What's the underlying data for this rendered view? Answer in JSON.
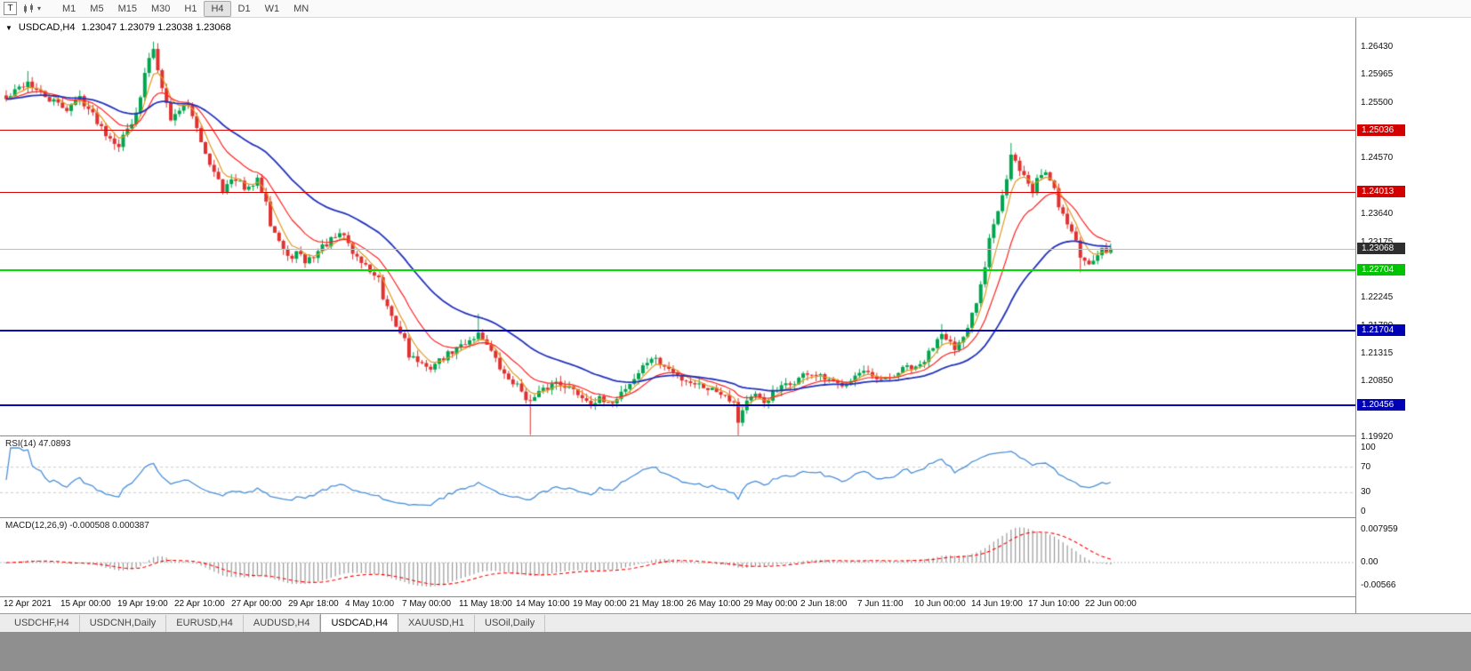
{
  "icons": {
    "title_dropdown": "▼",
    "toolbar_caret": "▾"
  },
  "toolbar": {
    "t_button": "T",
    "timeframes": [
      "M1",
      "M5",
      "M15",
      "M30",
      "H1",
      "H4",
      "D1",
      "W1",
      "MN"
    ],
    "active_timeframe": "H4"
  },
  "chart": {
    "title_symbol": "USDCAD,H4",
    "ohlc": "1.23047 1.23079 1.23038 1.23068",
    "axis_labels": [
      {
        "text": "1.26430",
        "price": 1.2643
      },
      {
        "text": "1.25965",
        "price": 1.25965
      },
      {
        "text": "1.25500",
        "price": 1.255
      },
      {
        "text": "1.24570",
        "price": 1.2457
      },
      {
        "text": "1.23640",
        "price": 1.2364
      },
      {
        "text": "1.23175",
        "price": 1.23175
      },
      {
        "text": "1.22245",
        "price": 1.22245
      },
      {
        "text": "1.21780",
        "price": 1.2178
      },
      {
        "text": "1.21315",
        "price": 1.21315
      },
      {
        "text": "1.20850",
        "price": 1.2085
      },
      {
        "text": "1.19920",
        "price": 1.1992
      }
    ],
    "badges": [
      {
        "text": "1.25036",
        "price": 1.25036,
        "color": "#d40000"
      },
      {
        "text": "1.24013",
        "price": 1.24013,
        "color": "#d40000"
      },
      {
        "text": "1.23068",
        "price": 1.23068,
        "color": "#2e2e2e"
      },
      {
        "text": "1.22704",
        "price": 1.22704,
        "color": "#00c400"
      },
      {
        "text": "1.21704",
        "price": 1.21704,
        "color": "#0000b4"
      },
      {
        "text": "1.20456",
        "price": 1.20456,
        "color": "#0000b4"
      }
    ],
    "hlines": [
      {
        "price": 1.25036,
        "color": "#dd0000",
        "width": 1
      },
      {
        "price": 1.24013,
        "color": "#dd0000",
        "width": 1
      },
      {
        "price": 1.22704,
        "color": "#00dd00",
        "width": 2
      },
      {
        "price": 1.21704,
        "color": "#0000bb",
        "width": 2
      },
      {
        "price": 1.20456,
        "color": "#0000bb",
        "width": 2
      }
    ],
    "price_line": {
      "price": 1.23068,
      "color": "#bdbdbd"
    }
  },
  "rsi": {
    "label": "RSI(14) 47.0893",
    "line_color": "#4a90d9",
    "axis_labels": [
      {
        "text": "100",
        "value": 100
      },
      {
        "text": "70",
        "value": 70
      },
      {
        "text": "30",
        "value": 30
      },
      {
        "text": "0",
        "value": 0
      }
    ],
    "levels": [
      30,
      70
    ]
  },
  "macd": {
    "label": "MACD(12,26,9) -0.000508 0.000387",
    "histogram_color": "#9a9a9a",
    "signal_color": "#ff0000",
    "axis_labels": [
      {
        "text": "0.007959",
        "value": 0.007959
      },
      {
        "text": "0.00",
        "value": 0
      },
      {
        "text": "-0.00566",
        "value": -0.00566
      }
    ]
  },
  "time_axis": [
    "12 Apr 2021",
    "15 Apr 00:00",
    "19 Apr 19:00",
    "22 Apr 10:00",
    "27 Apr 00:00",
    "29 Apr 18:00",
    "4 May 10:00",
    "7 May 00:00",
    "11 May 18:00",
    "14 May 10:00",
    "19 May 00:00",
    "21 May 18:00",
    "26 May 10:00",
    "29 May 00:00",
    "2 Jun 18:00",
    "7 Jun 11:00",
    "10 Jun 00:00",
    "14 Jun 19:00",
    "17 Jun 10:00",
    "22 Jun 00:00"
  ],
  "tabs": {
    "items": [
      "USDCHF,H4",
      "USDCNH,Daily",
      "EURUSD,H4",
      "AUDUSD,H4",
      "USDCAD,H4",
      "XAUUSD,H1",
      "USOil,Daily"
    ],
    "active": "USDCAD,H4"
  },
  "chart_data": {
    "type": "candlestick",
    "symbol": "USDCAD",
    "period": "H4",
    "last_ohlc": {
      "open": 1.23047,
      "high": 1.23079,
      "low": 1.23038,
      "close": 1.23068
    },
    "price_range": [
      1.19952,
      1.26918
    ],
    "candle_count": 256,
    "colors": {
      "bull": "#00a64f",
      "bear": "#e03131",
      "ma_fast": "#e09a20",
      "ma_mid": "#ff2222",
      "ma_slow": "#2233bb"
    },
    "ma_periods": {
      "fast": 5,
      "mid": 13,
      "slow": 34
    },
    "indicators": {
      "rsi_period": 14,
      "macd": [
        12,
        26,
        9
      ]
    },
    "close_anchors": [
      [
        0,
        1.2555
      ],
      [
        3,
        1.2575
      ],
      [
        5,
        1.2585
      ],
      [
        7,
        1.257
      ],
      [
        10,
        1.2555
      ],
      [
        14,
        1.254
      ],
      [
        17,
        1.256
      ],
      [
        20,
        1.253
      ],
      [
        23,
        1.25
      ],
      [
        26,
        1.248
      ],
      [
        29,
        1.252
      ],
      [
        31,
        1.2555
      ],
      [
        32,
        1.26
      ],
      [
        34,
        1.2642
      ],
      [
        35,
        1.2605
      ],
      [
        37,
        1.2555
      ],
      [
        38,
        1.252
      ],
      [
        40,
        1.254
      ],
      [
        42,
        1.255
      ],
      [
        43,
        1.253
      ],
      [
        45,
        1.248
      ],
      [
        47,
        1.245
      ],
      [
        49,
        1.2425
      ],
      [
        50,
        1.2405
      ],
      [
        52,
        1.242
      ],
      [
        54,
        1.2415
      ],
      [
        56,
        1.2405
      ],
      [
        58,
        1.242
      ],
      [
        60,
        1.239
      ],
      [
        61,
        1.235
      ],
      [
        63,
        1.232
      ],
      [
        65,
        1.229
      ],
      [
        67,
        1.23
      ],
      [
        69,
        1.2285
      ],
      [
        71,
        1.2295
      ],
      [
        73,
        1.231
      ],
      [
        76,
        1.2325
      ],
      [
        78,
        1.233
      ],
      [
        80,
        1.23
      ],
      [
        82,
        1.2285
      ],
      [
        84,
        1.227
      ],
      [
        86,
        1.2255
      ],
      [
        87,
        1.222
      ],
      [
        89,
        1.219
      ],
      [
        91,
        1.2165
      ],
      [
        92,
        1.216
      ],
      [
        93,
        1.213
      ],
      [
        95,
        1.212
      ],
      [
        97,
        1.2105
      ],
      [
        99,
        1.2115
      ],
      [
        101,
        1.2125
      ],
      [
        103,
        1.2135
      ],
      [
        105,
        1.2145
      ],
      [
        107,
        1.2155
      ],
      [
        109,
        1.2165
      ],
      [
        111,
        1.215
      ],
      [
        113,
        1.212
      ],
      [
        115,
        1.2095
      ],
      [
        117,
        1.2085
      ],
      [
        119,
        1.207
      ],
      [
        121,
        1.205
      ],
      [
        123,
        1.2065
      ],
      [
        125,
        1.2075
      ],
      [
        127,
        1.2085
      ],
      [
        129,
        1.208
      ],
      [
        131,
        1.207
      ],
      [
        133,
        1.206
      ],
      [
        135,
        1.205
      ],
      [
        137,
        1.2055
      ],
      [
        139,
        1.2045
      ],
      [
        141,
        1.206
      ],
      [
        143,
        1.2075
      ],
      [
        145,
        1.209
      ],
      [
        147,
        1.211
      ],
      [
        149,
        1.2125
      ],
      [
        152,
        1.211
      ],
      [
        154,
        1.21
      ],
      [
        156,
        1.209
      ],
      [
        158,
        1.2085
      ],
      [
        160,
        1.208
      ],
      [
        162,
        1.2075
      ],
      [
        164,
        1.207
      ],
      [
        166,
        1.2065
      ],
      [
        168,
        1.205
      ],
      [
        169,
        1.202
      ],
      [
        171,
        1.2055
      ],
      [
        173,
        1.206
      ],
      [
        175,
        1.205
      ],
      [
        177,
        1.2065
      ],
      [
        179,
        1.2075
      ],
      [
        181,
        1.208
      ],
      [
        183,
        1.209
      ],
      [
        185,
        1.21
      ],
      [
        187,
        1.2095
      ],
      [
        190,
        1.2085
      ],
      [
        192,
        1.208
      ],
      [
        194,
        1.2085
      ],
      [
        196,
        1.2095
      ],
      [
        198,
        1.21
      ],
      [
        200,
        1.209
      ],
      [
        202,
        1.2085
      ],
      [
        204,
        1.209
      ],
      [
        206,
        1.21
      ],
      [
        208,
        1.211
      ],
      [
        210,
        1.2105
      ],
      [
        212,
        1.212
      ],
      [
        214,
        1.2145
      ],
      [
        216,
        1.217
      ],
      [
        218,
        1.215
      ],
      [
        219,
        1.2135
      ],
      [
        221,
        1.2155
      ],
      [
        222,
        1.2175
      ],
      [
        224,
        1.222
      ],
      [
        226,
        1.228
      ],
      [
        227,
        1.233
      ],
      [
        229,
        1.237
      ],
      [
        231,
        1.242
      ],
      [
        232,
        1.246
      ],
      [
        234,
        1.244
      ],
      [
        236,
        1.2415
      ],
      [
        237,
        1.24
      ],
      [
        238,
        1.2425
      ],
      [
        240,
        1.2435
      ],
      [
        242,
        1.241
      ],
      [
        243,
        1.238
      ],
      [
        245,
        1.235
      ],
      [
        247,
        1.232
      ],
      [
        248,
        1.229
      ],
      [
        250,
        1.2285
      ],
      [
        252,
        1.23
      ],
      [
        254,
        1.2305
      ],
      [
        255,
        1.23068
      ]
    ],
    "wick_overrides": [
      {
        "i": 5,
        "high": 1.2603
      },
      {
        "i": 26,
        "low": 1.2468
      },
      {
        "i": 34,
        "high": 1.2652
      },
      {
        "i": 109,
        "high": 1.2198
      },
      {
        "i": 121,
        "low": 1.1996
      },
      {
        "i": 169,
        "low": 1.1995
      },
      {
        "i": 216,
        "high": 1.2181
      },
      {
        "i": 232,
        "high": 1.2483
      },
      {
        "i": 248,
        "low": 1.2267
      }
    ]
  }
}
